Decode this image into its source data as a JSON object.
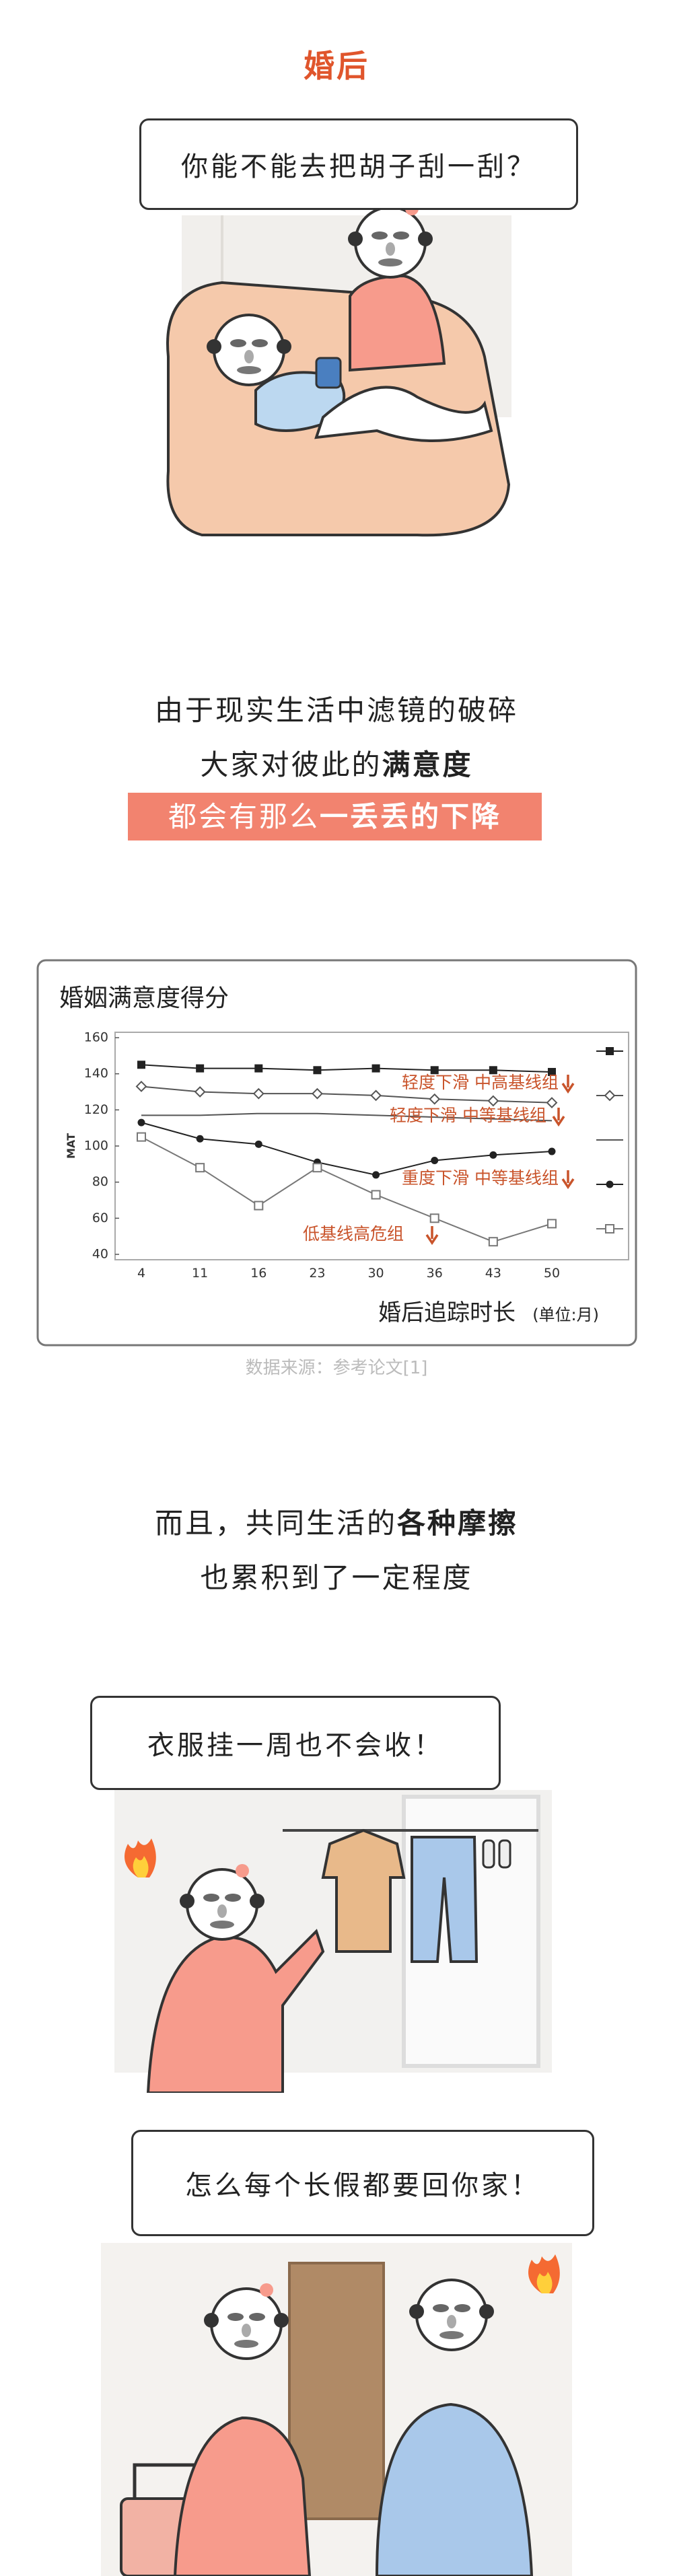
{
  "header": {
    "title": "婚后"
  },
  "bubbles": [
    {
      "text": "你能不能去把胡子刮一刮？"
    },
    {
      "text": "衣服挂一周也不会收！"
    },
    {
      "text": "怎么每个长假都要回你家！"
    }
  ],
  "paragraph1": {
    "lines": [
      [
        "由于现实生活中滤镜的破碎"
      ],
      [
        "大家对彼此的",
        "满意度"
      ],
      [
        "都会有那么",
        "一丢丢的下降"
      ]
    ]
  },
  "paragraph2": {
    "lines": [
      [
        "而且，共同生活的",
        "各种摩擦"
      ],
      [
        "也累积到了一定程度"
      ]
    ]
  },
  "source": "数据来源：参考论文[1]",
  "chart_data": {
    "type": "line",
    "title": "婚姻满意度得分",
    "y_label": "MAT",
    "x_label": "婚后追踪时长",
    "x_unit": "(单位:月)",
    "categories": [
      "4",
      "11",
      "16",
      "23",
      "30",
      "36",
      "43",
      "50"
    ],
    "ylim": [
      40,
      160
    ],
    "yticks": [
      40,
      60,
      80,
      100,
      120,
      140,
      160
    ],
    "annotation_color": "#c9542b",
    "series": [
      {
        "marker": "square-filled",
        "color": "#222222",
        "values": [
          145,
          143,
          143,
          142,
          143,
          142,
          142,
          141
        ]
      },
      {
        "name": "轻度下滑 中高基线组",
        "marker": "diamond-open",
        "color": "#555555",
        "values": [
          133,
          130,
          129,
          129,
          128,
          126,
          125,
          124
        ]
      },
      {
        "name": "轻度下滑 中等基线组",
        "marker": "none",
        "color": "#555555",
        "values": [
          117,
          117,
          118,
          118,
          117,
          116,
          115,
          114
        ]
      },
      {
        "name": "重度下滑 中等基线组",
        "marker": "circle-filled",
        "color": "#222222",
        "values": [
          113,
          104,
          101,
          91,
          84,
          92,
          95,
          97
        ]
      },
      {
        "name": "低基线高危组",
        "marker": "square-open",
        "color": "#777777",
        "values": [
          105,
          88,
          67,
          88,
          73,
          60,
          47,
          57
        ]
      }
    ]
  }
}
